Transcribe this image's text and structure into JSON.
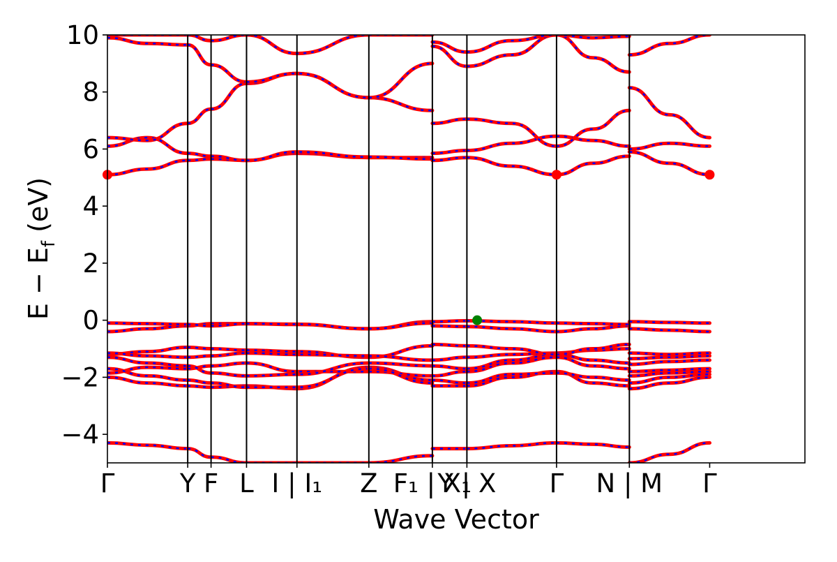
{
  "chart_data": {
    "type": "line",
    "title": "",
    "xlabel": "Wave Vector",
    "ylabel": "E − E_f (eV)",
    "ylabel_main": "E − E",
    "ylabel_sub": "f",
    "ylabel_tail": " (eV)",
    "ylim": [
      -5,
      10
    ],
    "xlim": [
      0,
      7.47
    ],
    "yticks": [
      -4,
      -2,
      0,
      2,
      4,
      6,
      8,
      10
    ],
    "ytick_labels": [
      "−4",
      "−2",
      "0",
      "2",
      "4",
      "6",
      "8",
      "10"
    ],
    "grid": false,
    "legend": "none",
    "kpoints": [
      {
        "x": 0.0,
        "label": "Γ"
      },
      {
        "x": 0.86,
        "label": "Y"
      },
      {
        "x": 1.11,
        "label": "F"
      },
      {
        "x": 1.49,
        "label": "L"
      },
      {
        "x": 2.03,
        "label": "I | I₁"
      },
      {
        "x": 2.8,
        "label": "Z"
      },
      {
        "x": 3.48,
        "label": "F₁ | X₁"
      },
      {
        "x": 3.85,
        "label": "Y | X"
      },
      {
        "x": 4.81,
        "label": "Γ"
      },
      {
        "x": 5.59,
        "label": "N | M"
      },
      {
        "x": 6.45,
        "label": "Γ"
      }
    ],
    "band_colors": {
      "spin_up": "#ff0000",
      "spin_down": "#0000ff"
    },
    "markers": [
      {
        "label": "CBM",
        "x": 0.0,
        "y": 5.1,
        "color": "#ff0000"
      },
      {
        "label": "CBM",
        "x": 4.81,
        "y": 5.1,
        "color": "#ff0000"
      },
      {
        "label": "CBM",
        "x": 6.45,
        "y": 5.1,
        "color": "#ff0000"
      },
      {
        "label": "VBM",
        "x": 3.96,
        "y": 0.0,
        "color": "#008000"
      }
    ],
    "segments": [
      {
        "name": "Γ-Y",
        "x": [
          0.0,
          0.43,
          0.86
        ],
        "bands": [
          [
            -4.3,
            -4.38,
            -4.5
          ],
          [
            -2.0,
            -2.2,
            -2.3
          ],
          [
            -1.85,
            -1.65,
            -1.7
          ],
          [
            -1.7,
            -1.95,
            -2.1
          ],
          [
            -1.3,
            -1.5,
            -1.6
          ],
          [
            -1.2,
            -1.1,
            -0.95
          ],
          [
            -1.15,
            -1.25,
            -1.3
          ],
          [
            -0.4,
            -0.3,
            -0.2
          ],
          [
            -0.1,
            -0.12,
            -0.15
          ],
          [
            5.1,
            5.3,
            5.6
          ],
          [
            6.1,
            6.4,
            5.85
          ],
          [
            6.4,
            6.3,
            6.9
          ],
          [
            9.9,
            9.7,
            9.65
          ],
          [
            10.0,
            10.0,
            10.0
          ]
        ]
      },
      {
        "name": "Y-F",
        "x": [
          0.86,
          1.11
        ],
        "bands": [
          [
            -4.5,
            -4.8
          ],
          [
            -2.3,
            -2.35
          ],
          [
            -1.7,
            -1.6
          ],
          [
            -2.1,
            -2.2
          ],
          [
            -1.6,
            -1.85
          ],
          [
            -0.95,
            -1.0
          ],
          [
            -1.3,
            -1.25
          ],
          [
            -0.2,
            -0.12
          ],
          [
            -0.15,
            -0.2
          ],
          [
            5.6,
            5.65
          ],
          [
            5.85,
            5.75
          ],
          [
            6.9,
            7.4
          ],
          [
            9.65,
            8.95
          ],
          [
            10.0,
            9.8
          ]
        ]
      },
      {
        "name": "F-L",
        "x": [
          1.11,
          1.49
        ],
        "bands": [
          [
            -4.8,
            -5.1
          ],
          [
            -2.35,
            -2.3
          ],
          [
            -1.6,
            -1.5
          ],
          [
            -2.2,
            -2.35
          ],
          [
            -1.85,
            -1.95
          ],
          [
            -1.0,
            -1.05
          ],
          [
            -1.25,
            -1.15
          ],
          [
            -0.12,
            -0.12
          ],
          [
            -0.2,
            -0.12
          ],
          [
            5.65,
            5.6
          ],
          [
            5.75,
            5.6
          ],
          [
            7.4,
            8.3
          ],
          [
            8.95,
            8.35
          ],
          [
            9.8,
            10.0
          ]
        ]
      },
      {
        "name": "I1-Z",
        "x": [
          1.49,
          2.03,
          2.8
        ],
        "bands": [
          [
            -5.1,
            -5.3,
            -5.4
          ],
          [
            -2.3,
            -2.4,
            -1.65
          ],
          [
            -1.5,
            -1.8,
            -1.8
          ],
          [
            -2.35,
            -2.35,
            -1.7
          ],
          [
            -1.95,
            -1.9,
            -1.5
          ],
          [
            -1.05,
            -1.1,
            -1.3
          ],
          [
            -1.15,
            -1.2,
            -1.25
          ],
          [
            -0.12,
            -0.15,
            -0.3
          ],
          [
            -0.12,
            -0.14,
            -0.3
          ],
          [
            5.6,
            5.85,
            5.7
          ],
          [
            5.6,
            5.9,
            5.72
          ],
          [
            8.3,
            8.65,
            7.8
          ],
          [
            8.35,
            8.65,
            7.8
          ],
          [
            10.0,
            9.35,
            10.0
          ]
        ]
      },
      {
        "name": "Z-F1",
        "x": [
          2.8,
          3.48
        ],
        "bands": [
          [
            -5.4,
            -4.75
          ],
          [
            -1.65,
            -2.1
          ],
          [
            -1.8,
            -1.95
          ],
          [
            -1.7,
            -2.2
          ],
          [
            -1.5,
            -1.6
          ],
          [
            -1.3,
            -0.9
          ],
          [
            -1.25,
            -1.4
          ],
          [
            -0.3,
            -0.05
          ],
          [
            -0.3,
            -0.1
          ],
          [
            5.7,
            5.7
          ],
          [
            5.72,
            5.65
          ],
          [
            7.8,
            7.35
          ],
          [
            7.8,
            9.0
          ],
          [
            10.0,
            10.0
          ]
        ]
      },
      {
        "name": "X1-Y",
        "x": [
          3.48,
          3.85
        ],
        "bands": [
          [
            -4.5,
            -4.5
          ],
          [
            -2.3,
            -2.3
          ],
          [
            -2.1,
            -2.2
          ],
          [
            -1.95,
            -1.8
          ],
          [
            -1.6,
            -1.7
          ],
          [
            -1.4,
            -1.3
          ],
          [
            -0.85,
            -0.9
          ],
          [
            -0.2,
            -0.22
          ],
          [
            -0.05,
            -0.02
          ],
          [
            5.6,
            5.7
          ],
          [
            5.85,
            5.95
          ],
          [
            6.9,
            7.05
          ],
          [
            9.6,
            8.9
          ],
          [
            9.75,
            9.4
          ]
        ]
      },
      {
        "name": "X-Γ",
        "x": [
          3.85,
          4.33,
          4.81
        ],
        "bands": [
          [
            -4.5,
            -4.4,
            -4.3
          ],
          [
            -2.3,
            -2.0,
            -1.8
          ],
          [
            -2.2,
            -1.9,
            -1.85
          ],
          [
            -1.8,
            -1.5,
            -1.3
          ],
          [
            -1.7,
            -1.4,
            -1.2
          ],
          [
            -1.3,
            -1.2,
            -1.15
          ],
          [
            -0.9,
            -1.0,
            -1.2
          ],
          [
            -0.22,
            -0.3,
            -0.4
          ],
          [
            -0.02,
            -0.05,
            -0.1
          ],
          [
            5.7,
            5.4,
            5.1
          ],
          [
            5.95,
            6.2,
            6.45
          ],
          [
            7.05,
            6.9,
            6.1
          ],
          [
            8.9,
            9.3,
            10.0
          ],
          [
            9.4,
            9.8,
            10.0
          ]
        ]
      },
      {
        "name": "Γ-N",
        "x": [
          4.81,
          5.2,
          5.59
        ],
        "bands": [
          [
            -4.3,
            -4.35,
            -4.45
          ],
          [
            -1.8,
            -2.2,
            -2.3
          ],
          [
            -1.85,
            -2.0,
            -2.1
          ],
          [
            -1.3,
            -1.6,
            -1.7
          ],
          [
            -1.2,
            -1.4,
            -1.5
          ],
          [
            -1.15,
            -1.05,
            -1.0
          ],
          [
            -1.2,
            -1.0,
            -0.85
          ],
          [
            -0.4,
            -0.3,
            -0.2
          ],
          [
            -0.1,
            -0.12,
            -0.15
          ],
          [
            5.1,
            5.5,
            5.75
          ],
          [
            6.45,
            6.3,
            6.1
          ],
          [
            6.1,
            6.7,
            7.35
          ],
          [
            10.0,
            9.2,
            8.7
          ],
          [
            10.0,
            9.9,
            9.95
          ]
        ]
      },
      {
        "name": "M-Γ",
        "x": [
          5.59,
          6.02,
          6.45
        ],
        "bands": [
          [
            -5.1,
            -4.7,
            -4.3
          ],
          [
            -2.4,
            -2.2,
            -2.0
          ],
          [
            -2.2,
            -2.0,
            -1.9
          ],
          [
            -1.95,
            -1.85,
            -1.8
          ],
          [
            -1.8,
            -1.75,
            -1.7
          ],
          [
            -1.55,
            -1.45,
            -1.4
          ],
          [
            -1.35,
            -1.3,
            -1.25
          ],
          [
            -1.15,
            -1.2,
            -1.15
          ],
          [
            -0.3,
            -0.35,
            -0.4
          ],
          [
            -0.05,
            -0.08,
            -0.1
          ],
          [
            5.9,
            5.5,
            5.1
          ],
          [
            6.0,
            6.2,
            6.1
          ],
          [
            8.15,
            7.2,
            6.4
          ],
          [
            9.3,
            9.7,
            10.0
          ]
        ]
      }
    ]
  }
}
